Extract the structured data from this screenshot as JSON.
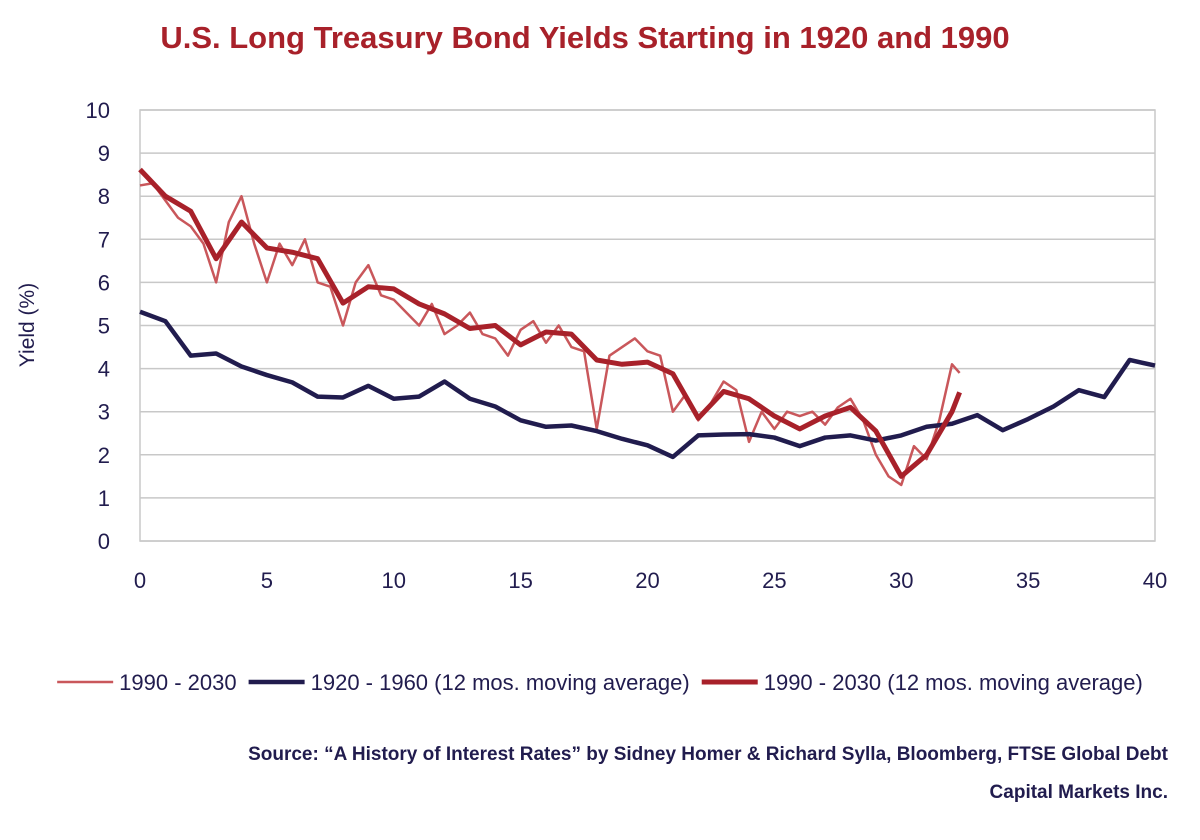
{
  "chart_data": {
    "type": "line",
    "title": "U.S. Long Treasury Bond Yields Starting in 1920 and 1990",
    "y_label": "Yield (%)",
    "source": [
      "Source: “A History of Interest Rates” by Sidney Homer & Richard Sylla, Bloomberg,  FTSE Global Debt",
      "Capital Markets Inc."
    ],
    "xlim": [
      0,
      40
    ],
    "xticks": [
      0,
      5,
      10,
      15,
      20,
      25,
      30,
      35,
      40
    ],
    "ylim": [
      0,
      10
    ],
    "yticks": [
      0,
      1,
      2,
      3,
      4,
      5,
      6,
      7,
      8,
      9,
      10
    ],
    "grid": true,
    "legend": "bottom",
    "series": [
      {
        "name": "1990 - 2030",
        "color": "#c9575b",
        "width": 2.5,
        "x": [
          0,
          0.5,
          1,
          1.5,
          2,
          2.5,
          3,
          3.5,
          4,
          4.5,
          5,
          5.5,
          6,
          6.5,
          7,
          7.5,
          8,
          8.5,
          9,
          9.5,
          10,
          10.5,
          11,
          11.5,
          12,
          12.5,
          13,
          13.5,
          14,
          14.5,
          15,
          15.5,
          16,
          16.5,
          17,
          17.5,
          18,
          18.5,
          19,
          19.5,
          20,
          20.5,
          21,
          21.5,
          22,
          22.5,
          23,
          23.5,
          24,
          24.5,
          25,
          25.5,
          26,
          26.5,
          27,
          27.5,
          28,
          28.5,
          29,
          29.5,
          30,
          30.5,
          31,
          31.5,
          32,
          32.3
        ],
        "values": [
          8.25,
          8.3,
          7.9,
          7.5,
          7.3,
          6.9,
          6.0,
          7.4,
          8.0,
          6.9,
          6.0,
          6.9,
          6.4,
          7.0,
          6.0,
          5.9,
          5.0,
          6.0,
          6.4,
          5.7,
          5.6,
          5.3,
          5.0,
          5.5,
          4.8,
          5.0,
          5.3,
          4.8,
          4.7,
          4.3,
          4.9,
          5.1,
          4.6,
          5.0,
          4.5,
          4.4,
          2.6,
          4.3,
          4.5,
          4.7,
          4.4,
          4.3,
          3.0,
          3.4,
          2.8,
          3.2,
          3.7,
          3.5,
          2.3,
          3.0,
          2.6,
          3.0,
          2.9,
          3.0,
          2.7,
          3.1,
          3.3,
          2.8,
          2.0,
          1.5,
          1.3,
          2.2,
          1.9,
          2.8,
          4.1,
          3.9
        ]
      },
      {
        "name": "1920 - 1960 (12 mos. moving average)",
        "color": "#211c4e",
        "width": 4.5,
        "x": [
          0,
          1,
          2,
          3,
          4,
          5,
          6,
          7,
          8,
          9,
          10,
          11,
          12,
          13,
          14,
          15,
          16,
          17,
          18,
          19,
          20,
          21,
          22,
          23,
          24,
          25,
          26,
          27,
          28,
          29,
          30,
          31,
          32,
          33,
          34,
          35,
          36,
          37,
          38,
          39,
          40
        ],
        "values": [
          5.32,
          5.1,
          4.3,
          4.35,
          4.05,
          3.85,
          3.68,
          3.35,
          3.33,
          3.6,
          3.3,
          3.35,
          3.7,
          3.3,
          3.12,
          2.8,
          2.65,
          2.68,
          2.55,
          2.37,
          2.22,
          1.95,
          2.45,
          2.47,
          2.48,
          2.4,
          2.2,
          2.4,
          2.45,
          2.33,
          2.45,
          2.65,
          2.72,
          2.92,
          2.57,
          2.83,
          3.12,
          3.5,
          3.34,
          4.2,
          4.07
        ]
      },
      {
        "name": "1990 - 2030 (12 mos. moving average)",
        "color": "#a8212a",
        "width": 5,
        "x": [
          0,
          1,
          2,
          3,
          4,
          5,
          6,
          7,
          8,
          9,
          10,
          11,
          12,
          13,
          14,
          15,
          16,
          17,
          18,
          19,
          20,
          21,
          22,
          23,
          24,
          25,
          26,
          27,
          28,
          29,
          30,
          31,
          32,
          32.3
        ],
        "values": [
          8.62,
          8.0,
          7.65,
          6.55,
          7.4,
          6.8,
          6.7,
          6.55,
          5.52,
          5.9,
          5.85,
          5.5,
          5.27,
          4.93,
          5.0,
          4.55,
          4.85,
          4.8,
          4.2,
          4.1,
          4.15,
          3.88,
          2.85,
          3.47,
          3.3,
          2.9,
          2.6,
          2.9,
          3.1,
          2.55,
          1.5,
          2.0,
          3.0,
          3.45
        ]
      }
    ]
  }
}
